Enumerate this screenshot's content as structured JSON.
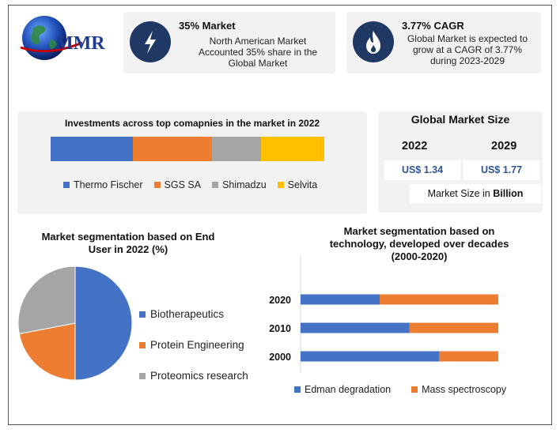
{
  "logo": {
    "text": "MMR"
  },
  "cards": [
    {
      "title": "35% Market",
      "text": "North American Market Accounted 35% share in the Global Market",
      "icon": "lightning-icon"
    },
    {
      "title": "3.77% CAGR",
      "text": "Global Market is expected to grow at a CAGR of 3.77% during 2023-2029",
      "icon": "flame-icon"
    }
  ],
  "market_size": {
    "title": "Global Market Size",
    "years": [
      "2022",
      "2029"
    ],
    "values": [
      "US$ 1.34",
      "US$ 1.77"
    ],
    "unit_prefix": "Market Size in ",
    "unit_bold": "Billion"
  },
  "colors": {
    "blue": "#4472c4",
    "orange": "#ed7d31",
    "gray": "#a5a5a5",
    "yellow": "#ffc000",
    "navy": "#1f3864"
  },
  "chart_data": [
    {
      "type": "bar",
      "orientation": "horizontal-stacked",
      "title": "Investments across top comapnies in the market in 2022",
      "series": [
        {
          "name": "Thermo Fischer",
          "values": [
            30
          ]
        },
        {
          "name": "SGS SA",
          "values": [
            29
          ]
        },
        {
          "name": "Shimadzu",
          "values": [
            18
          ]
        },
        {
          "name": "Selvita",
          "values": [
            23
          ]
        }
      ],
      "legend": "bottom"
    },
    {
      "type": "pie",
      "title": "Market segmentation based on End User in 2022 (%)",
      "labels": [
        "Biotherapeutics",
        "Protein Engineering",
        "Proteomics research"
      ],
      "values": [
        50,
        22,
        28
      ],
      "legend": "right"
    },
    {
      "type": "bar",
      "orientation": "horizontal-stacked",
      "title": "Market segmentation based on technology, developed over decades (2000-2020)",
      "categories": [
        "2020",
        "2010",
        "2000"
      ],
      "series": [
        {
          "name": "Edman degradation",
          "values": [
            40,
            55,
            70
          ]
        },
        {
          "name": "Mass spectroscopy",
          "values": [
            60,
            45,
            30
          ]
        }
      ],
      "xlim": [
        0,
        100
      ],
      "legend": "bottom"
    }
  ]
}
